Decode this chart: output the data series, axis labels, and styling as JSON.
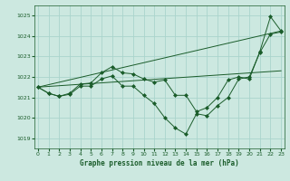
{
  "xlabel": "Graphe pression niveau de la mer (hPa)",
  "bg_color": "#cce8e0",
  "grid_color": "#aad4cc",
  "line_color": "#1a5c2a",
  "ylim": [
    1018.5,
    1025.5
  ],
  "xlim": [
    -0.3,
    23.3
  ],
  "yticks": [
    1019,
    1020,
    1021,
    1022,
    1023,
    1024,
    1025
  ],
  "xticks": [
    0,
    1,
    2,
    3,
    4,
    5,
    6,
    7,
    8,
    9,
    10,
    11,
    12,
    13,
    14,
    15,
    16,
    17,
    18,
    19,
    20,
    21,
    22,
    23
  ],
  "series_main": [
    1021.5,
    1021.2,
    1021.05,
    1021.15,
    1021.55,
    1021.55,
    1021.9,
    1022.05,
    1021.55,
    1021.55,
    1021.1,
    1020.7,
    1020.0,
    1019.5,
    1019.2,
    1020.2,
    1020.1,
    1020.6,
    1021.0,
    1021.9,
    1022.0,
    1023.2,
    1024.1,
    1024.2
  ],
  "series_upper": [
    1021.5,
    1021.2,
    1021.05,
    1021.2,
    1021.65,
    1021.7,
    1022.2,
    1022.5,
    1022.2,
    1022.15,
    1021.9,
    1021.75,
    1021.85,
    1021.1,
    1021.1,
    1020.3,
    1020.5,
    1021.0,
    1021.85,
    1022.0,
    1021.9,
    1023.25,
    1024.95,
    1024.25
  ],
  "trend1_x": [
    0,
    23
  ],
  "trend1_y": [
    1021.5,
    1024.25
  ],
  "trend2_x": [
    0,
    23
  ],
  "trend2_y": [
    1021.5,
    1022.3
  ]
}
